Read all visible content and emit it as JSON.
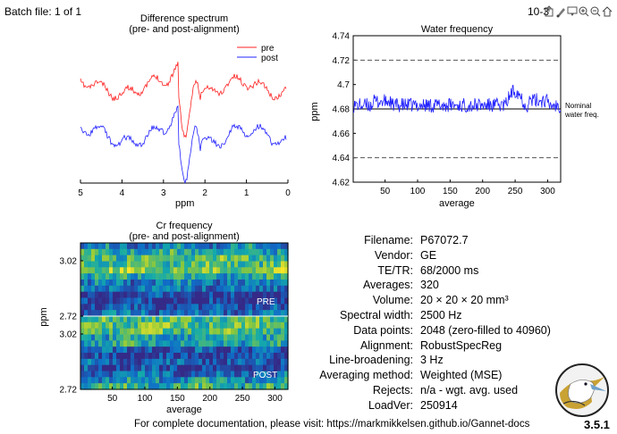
{
  "header": {
    "batch": "Batch file: 1 of 1",
    "doc_time": "10-3"
  },
  "toolbar": {
    "buttons": [
      {
        "icon": "export-icon"
      },
      {
        "icon": "brush-icon"
      },
      {
        "icon": "data-tip-icon"
      },
      {
        "icon": "zoom-in-icon"
      },
      {
        "icon": "zoom-out-icon"
      },
      {
        "icon": "home-icon"
      }
    ]
  },
  "plots": {
    "diff": {
      "title_line1": "Difference spectrum",
      "title_line2": "(pre- and post-alignment)",
      "xlabel": "ppm",
      "xticks": [
        "5",
        "4",
        "3",
        "2",
        "1",
        "0"
      ],
      "legend": [
        {
          "label": "pre",
          "color": "#ff2020"
        },
        {
          "label": "post",
          "color": "#2020ff"
        }
      ]
    },
    "water": {
      "title": "Water frequency",
      "xlabel": "average",
      "ylabel": "ppm",
      "yticks": [
        "4.74",
        "4.72",
        "4.7",
        "4.68",
        "4.66",
        "4.64",
        "4.62"
      ],
      "xticks": [
        "50",
        "100",
        "150",
        "200",
        "250",
        "300"
      ],
      "annotation_line1": "Nominal",
      "annotation_line2": "water freq."
    },
    "cr": {
      "title_line1": "Cr frequency",
      "title_line2": "(pre- and post-alignment)",
      "xlabel": "average",
      "ylabel": "ppm",
      "yticks_top": [
        "3.02",
        "2.72"
      ],
      "yticks_bottom": [
        "3.02",
        "2.72"
      ],
      "xticks": [
        "50",
        "100",
        "150",
        "200",
        "250",
        "300"
      ],
      "label_pre": "PRE",
      "label_post": "POST"
    }
  },
  "info": {
    "rows": [
      {
        "label": "Filename:",
        "value": "P67072.7"
      },
      {
        "label": "Vendor:",
        "value": "GE"
      },
      {
        "label": "TE/TR:",
        "value": "68/2000 ms"
      },
      {
        "label": "Averages:",
        "value": "320"
      },
      {
        "label": "Volume:",
        "value": "20 × 20 × 20 mm³"
      },
      {
        "label": "Spectral width:",
        "value": "2500 Hz"
      },
      {
        "label": "Data points:",
        "value": "2048 (zero-filled to 40960)"
      },
      {
        "label": "Alignment:",
        "value": "RobustSpecReg"
      },
      {
        "label": "Line-broadening:",
        "value": "3 Hz"
      },
      {
        "label": "Averaging method:",
        "value": "Weighted (MSE)"
      },
      {
        "label": "Rejects:",
        "value": "n/a - wgt. avg. used"
      },
      {
        "label": "LoadVer:",
        "value": "250914"
      }
    ]
  },
  "footer": {
    "doc_text": "For complete documentation, please visit: https://markmikkelsen.github.io/Gannet-docs",
    "version": "3.5.1"
  },
  "chart_data": [
    {
      "type": "line",
      "title": "Difference spectrum (pre- and post-alignment)",
      "xlabel": "ppm",
      "xlim": [
        5,
        0
      ],
      "series": [
        {
          "name": "pre"
        },
        {
          "name": "post"
        }
      ]
    },
    {
      "type": "line",
      "title": "Water frequency",
      "xlabel": "average",
      "ylabel": "ppm",
      "xlim": [
        1,
        320
      ],
      "ylim": [
        4.62,
        4.74
      ],
      "reference_lines": {
        "nominal": 4.68,
        "dashed": [
          4.64,
          4.72
        ]
      },
      "annotation": "Nominal water freq.",
      "summary": {
        "typical_range": [
          4.676,
          4.701
        ],
        "peak_near_average": 250,
        "peak_value": 4.701
      }
    },
    {
      "type": "heatmap",
      "title": "Cr frequency (pre- and post-alignment)",
      "xlabel": "average",
      "ylabel": "ppm",
      "xlim": [
        1,
        320
      ],
      "panels": [
        {
          "name": "PRE",
          "ylim": [
            2.72,
            3.02
          ]
        },
        {
          "name": "POST",
          "ylim": [
            2.72,
            3.02
          ]
        }
      ]
    }
  ]
}
